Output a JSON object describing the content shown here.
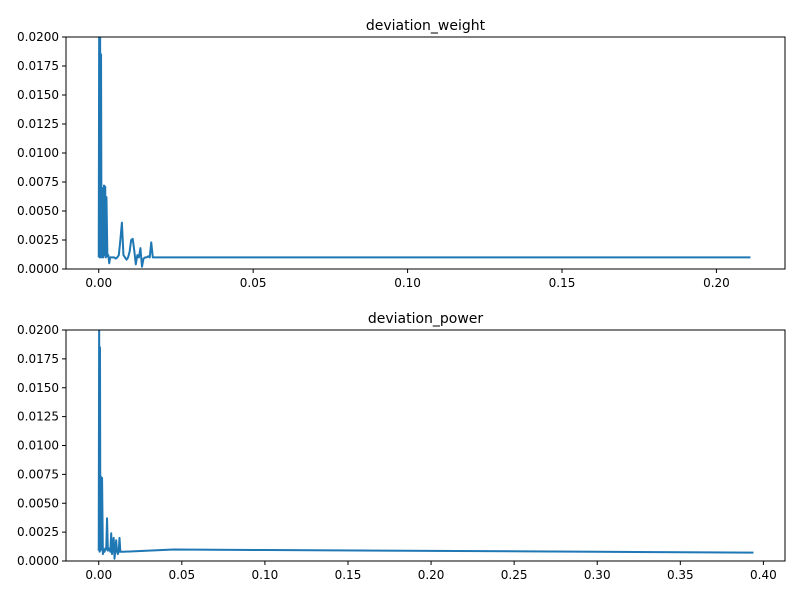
{
  "chart_data": [
    {
      "type": "line",
      "title": "deviation_weight",
      "xlabel": "",
      "ylabel": "",
      "xlim": [
        -0.0106,
        0.2222
      ],
      "ylim": [
        0,
        0.02
      ],
      "xticks": [
        0.0,
        0.05,
        0.1,
        0.15,
        0.2
      ],
      "xtick_labels": [
        "0.00",
        "0.05",
        "0.10",
        "0.15",
        "0.20"
      ],
      "yticks": [
        0,
        0.0025,
        0.005,
        0.0075,
        0.01,
        0.0125,
        0.015,
        0.0175,
        0.02
      ],
      "ytick_labels": [
        "0.0000",
        "0.0025",
        "0.0050",
        "0.0075",
        "0.0100",
        "0.0125",
        "0.0150",
        "0.0175",
        "0.0200"
      ],
      "grid": false,
      "color": "#1f77b4",
      "series": [
        {
          "x": [
            0.0,
            0.00015,
            0.0003,
            0.00045,
            0.0006,
            0.00075,
            0.0009,
            0.00105,
            0.0012,
            0.00135,
            0.0015,
            0.0017,
            0.0019,
            0.0021,
            0.0023,
            0.0025,
            0.0028,
            0.0031,
            0.0034,
            0.0037,
            0.004,
            0.0045,
            0.005,
            0.0055,
            0.006,
            0.0065,
            0.007,
            0.0075,
            0.008,
            0.0085,
            0.009,
            0.0095,
            0.01,
            0.0105,
            0.011,
            0.0115,
            0.012,
            0.0125,
            0.013,
            0.0135,
            0.014,
            0.0145,
            0.015,
            0.0155,
            0.016,
            0.0165,
            0.017,
            0.0175,
            0.018,
            0.03,
            0.05,
            0.1,
            0.15,
            0.2,
            0.211
          ],
          "y": [
            0.001,
            0.022,
            0.001,
            0.02,
            0.001,
            0.0185,
            0.001,
            0.007,
            0.001,
            0.006,
            0.001,
            0.0072,
            0.0012,
            0.0071,
            0.001,
            0.0062,
            0.0011,
            0.0012,
            0.0005,
            0.001,
            0.001,
            0.001,
            0.001,
            0.0009,
            0.001,
            0.0012,
            0.0025,
            0.004,
            0.0012,
            0.001,
            0.0008,
            0.001,
            0.0015,
            0.0025,
            0.0026,
            0.0016,
            0.0004,
            0.0012,
            0.001,
            0.0018,
            0.0002,
            0.0009,
            0.001,
            0.001,
            0.0011,
            0.001,
            0.0023,
            0.001,
            0.001,
            0.001,
            0.001,
            0.001,
            0.001,
            0.001,
            0.001
          ]
        }
      ]
    },
    {
      "type": "line",
      "title": "deviation_power",
      "xlabel": "",
      "ylabel": "",
      "xlim": [
        -0.0197,
        0.413
      ],
      "ylim": [
        0,
        0.02
      ],
      "xticks": [
        0.0,
        0.05,
        0.1,
        0.15,
        0.2,
        0.25,
        0.3,
        0.35,
        0.4
      ],
      "xtick_labels": [
        "0.00",
        "0.05",
        "0.10",
        "0.15",
        "0.20",
        "0.25",
        "0.30",
        "0.35",
        "0.40"
      ],
      "yticks": [
        0,
        0.0025,
        0.005,
        0.0075,
        0.01,
        0.0125,
        0.015,
        0.0175,
        0.02
      ],
      "ytick_labels": [
        "0.0000",
        "0.0025",
        "0.0050",
        "0.0075",
        "0.0100",
        "0.0125",
        "0.0150",
        "0.0175",
        "0.0200"
      ],
      "grid": false,
      "color": "#1f77b4",
      "series": [
        {
          "x": [
            0.0,
            0.00025,
            0.0005,
            0.00075,
            0.001,
            0.0013,
            0.0016,
            0.002,
            0.0025,
            0.003,
            0.0035,
            0.004,
            0.0045,
            0.005,
            0.0055,
            0.006,
            0.0065,
            0.007,
            0.0075,
            0.008,
            0.0085,
            0.009,
            0.0095,
            0.01,
            0.0105,
            0.011,
            0.0115,
            0.012,
            0.0125,
            0.013,
            0.015,
            0.045,
            0.1,
            0.2,
            0.3,
            0.394
          ],
          "y": [
            0.0009,
            0.021,
            0.0008,
            0.0185,
            0.0009,
            0.0073,
            0.001,
            0.0072,
            0.0006,
            0.001,
            0.0008,
            0.0011,
            0.001,
            0.0037,
            0.0009,
            0.0011,
            0.001,
            0.0008,
            0.0024,
            0.0006,
            0.0015,
            0.002,
            0.0002,
            0.001,
            0.0018,
            0.0008,
            0.0006,
            0.0008,
            0.002,
            0.0008,
            0.0008,
            0.001,
            0.00095,
            0.00088,
            0.0008,
            0.00072
          ]
        }
      ]
    }
  ]
}
